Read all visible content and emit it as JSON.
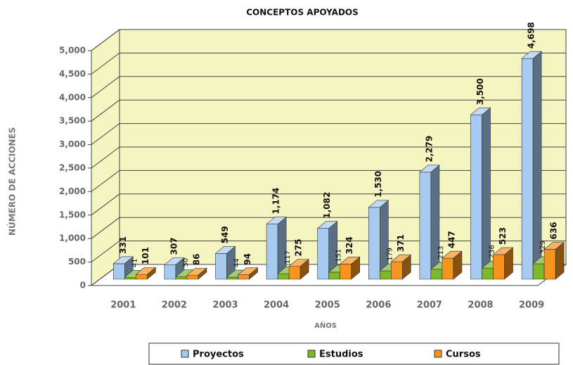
{
  "chart_data": {
    "type": "bar3d",
    "title": "CONCEPTOS APOYADOS",
    "x_label": "AÑOS",
    "y_label": "NÚMERO DE ACCIONES",
    "categories": [
      "2001",
      "2002",
      "2003",
      "2004",
      "2005",
      "2006",
      "2007",
      "2008",
      "2009"
    ],
    "series": [
      {
        "name": "Proyectos",
        "color": "#a6caf0",
        "values": [
          331,
          307,
          549,
          1174,
          1082,
          1530,
          2279,
          3500,
          4698
        ],
        "value_labels": [
          "331",
          "307",
          "549",
          "1,174",
          "1,082",
          "1,530",
          "2,279",
          "3,500",
          "4,698"
        ]
      },
      {
        "name": "Estudios",
        "color": "#7cb82a",
        "values": [
          41,
          50,
          44,
          117,
          151,
          179,
          213,
          236,
          329
        ]
      },
      {
        "name": "Cursos",
        "color": "#f7941d",
        "values": [
          101,
          86,
          94,
          275,
          324,
          371,
          447,
          523,
          636
        ]
      }
    ],
    "ylim": [
      0,
      5000
    ],
    "yticks": [
      0,
      500,
      {
        "value": 1000,
        "label": "1,000"
      },
      {
        "value": 1500,
        "label": "1,500"
      },
      {
        "value": 2000,
        "label": "2,000"
      },
      {
        "value": 2500,
        "label": "2,500"
      },
      {
        "value": 3000,
        "label": "3,000"
      },
      {
        "value": 3500,
        "label": "3,500"
      },
      {
        "value": 4000,
        "label": "4,000"
      },
      {
        "value": 4500,
        "label": "4,500"
      },
      {
        "value": 5000,
        "label": "5,000"
      }
    ],
    "grid": true,
    "legend": "bottom"
  }
}
